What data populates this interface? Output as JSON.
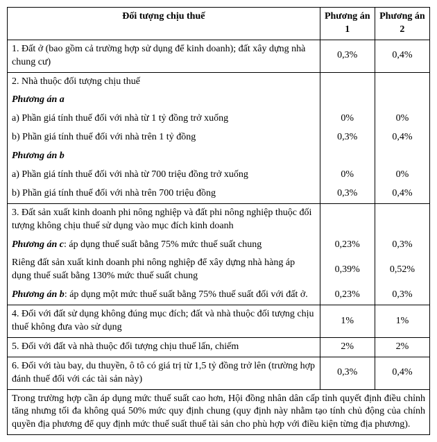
{
  "columns": {
    "subject": "Đối tượng chịu thuế",
    "option1": "Phương án 1",
    "option2": "Phương án 2"
  },
  "r1": {
    "text": "1. Đất ở (bao gồm cả trường hợp sử dụng để kinh doanh); đất xây dựng nhà chung cư)",
    "v1": "0,3%",
    "v2": "0,4%"
  },
  "r2": {
    "head": "2. Nhà thuộc đối tượng chịu thuế",
    "pa_a": "Phương án a",
    "a1": {
      "text": "a) Phần giá tính thuế đối với nhà từ 1 tỷ đồng trở xuống",
      "v1": "0%",
      "v2": "0%"
    },
    "a2": {
      "text": "b) Phần giá tính thuế đối với nhà trên 1 tỷ đồng",
      "v1": "0,3%",
      "v2": "0,4%"
    },
    "pa_b": "Phương án b",
    "b1": {
      "text": "a) Phần giá tính thuế đối với nhà từ 700 triệu đồng trở xuống",
      "v1": "0%",
      "v2": "0%"
    },
    "b2": {
      "text": "b) Phần giá tính thuế đối với nhà trên 700 triệu đồng",
      "v1": "0,3%",
      "v2": "0,4%"
    }
  },
  "r3": {
    "head": "3. Đất sản xuất kinh doanh phi nông nghiệp và đất phi nông nghiệp thuộc đối tượng không chịu thuế sử dụng vào mục đích kinh doanh",
    "c_pre": "Phương án c",
    "c_txt": ": áp dụng thuế suất bằng 75% mức thuế suất chung",
    "c": {
      "v1": "0,23%",
      "v2": "0,3%"
    },
    "r_txt": "Riêng đất sản xuất kinh doanh phi nông nghiệp để xây dựng nhà hàng áp dụng thuế suất bằng 130% mức thuế suất chung",
    "r": {
      "v1": "0,39%",
      "v2": "0,52%"
    },
    "b_pre": "Phương án b",
    "b_txt": ": áp dụng một mức thuế suất bằng 75% thuế suất đối với đất ở.",
    "b": {
      "v1": "0,23%",
      "v2": "0,3%"
    }
  },
  "r4": {
    "text": "4. Đối với đất sử dụng không đúng mục đích; đất và nhà thuộc đối tượng chịu thuế không đưa vào sử dụng",
    "v1": "1%",
    "v2": "1%"
  },
  "r5": {
    "text": "5. Đối với đất và nhà thuộc đối tượng chịu thuế lấn, chiếm",
    "v1": "2%",
    "v2": "2%"
  },
  "r6": {
    "text": "6. Đối với tàu bay, du thuyền, ô tô có giá trị từ 1,5 tỷ đồng trở lên (trường hợp đánh thuế đối với các tài sản này)",
    "v1": "0,3%",
    "v2": "0,4%"
  },
  "footer": "Trong trường hợp cần áp dụng mức thuế suất cao hơn, Hội đồng nhân dân cấp tỉnh quyết định điều chỉnh tăng nhưng tối đa không quá 50% mức quy định chung (quy định này nhằm tạo tính chủ động của chính quyền địa phương để quy định mức thuế suất thuế tài sản cho phù hợp với điều kiện từng địa phương)."
}
